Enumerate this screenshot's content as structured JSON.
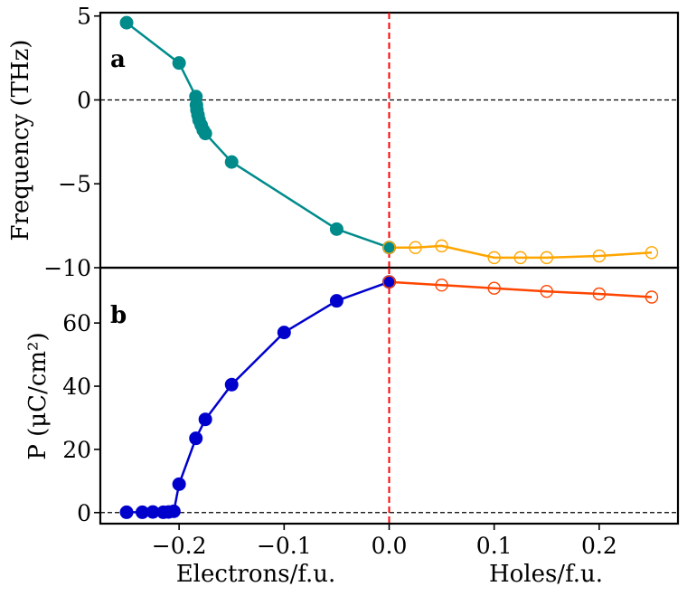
{
  "chart_data": [
    {
      "type": "line",
      "panel_label": "a",
      "ylabel": "Frequency (THz)",
      "xlim": [
        -0.275,
        0.275
      ],
      "ylim": [
        -10,
        5.2
      ],
      "yticks": [
        5,
        0,
        -5,
        -10
      ],
      "ytick_labels": [
        "5",
        "0",
        "−5",
        "−10"
      ],
      "reference_lines": {
        "y_zero": 0,
        "x_zero": 0
      },
      "series": [
        {
          "name": "electrons",
          "color": "#008b8b",
          "marker": "filled",
          "x": [
            -0.25,
            -0.2,
            -0.184,
            -0.1835,
            -0.183,
            -0.182,
            -0.181,
            -0.179,
            -0.177,
            -0.175,
            -0.15,
            -0.05,
            0.0
          ],
          "y": [
            4.6,
            2.2,
            0.2,
            -0.3,
            -0.6,
            -0.9,
            -1.2,
            -1.5,
            -1.8,
            -2.0,
            -3.7,
            -7.7,
            -8.8
          ]
        },
        {
          "name": "holes",
          "color": "#ffa500",
          "marker": "open",
          "x": [
            0.0,
            0.025,
            0.05,
            0.1,
            0.125,
            0.15,
            0.2,
            0.25
          ],
          "y": [
            -8.8,
            -8.8,
            -8.7,
            -9.4,
            -9.4,
            -9.4,
            -9.3,
            -9.1
          ]
        }
      ]
    },
    {
      "type": "line",
      "panel_label": "b",
      "ylabel": "P (μC/cm²)",
      "xlabel_left": "Electrons/f.u.",
      "xlabel_right": "Holes/f.u.",
      "xlim": [
        -0.275,
        0.275
      ],
      "ylim": [
        -3.5,
        77.5
      ],
      "xticks": [
        -0.2,
        -0.1,
        0.0,
        0.1,
        0.2
      ],
      "xtick_labels": [
        "−0.2",
        "−0.1",
        "0.0",
        "0.1",
        "0.2"
      ],
      "yticks": [
        60,
        40,
        20,
        0
      ],
      "ytick_labels": [
        "60",
        "40",
        "20",
        "0"
      ],
      "reference_lines": {
        "y_zero": 0,
        "x_zero": 0
      },
      "series": [
        {
          "name": "electrons",
          "color": "#0000cd",
          "marker": "filled",
          "x": [
            -0.25,
            -0.235,
            -0.225,
            -0.215,
            -0.21,
            -0.205,
            -0.2,
            -0.184,
            -0.175,
            -0.15,
            -0.1,
            -0.05,
            0.0
          ],
          "y": [
            0.1,
            0.1,
            0.2,
            0.1,
            0.2,
            0.4,
            9.0,
            23.5,
            29.5,
            40.5,
            57.0,
            67.0,
            73.0
          ]
        },
        {
          "name": "holes",
          "color": "#ff4500",
          "marker": "open",
          "x": [
            0.0,
            0.05,
            0.1,
            0.15,
            0.2,
            0.25
          ],
          "y": [
            73.0,
            72.0,
            71.0,
            70.0,
            69.2,
            68.2
          ]
        }
      ]
    }
  ]
}
